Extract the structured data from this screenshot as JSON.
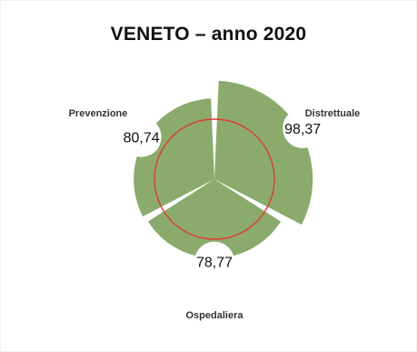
{
  "chart_data": {
    "type": "polar-bar",
    "title": "VENETO – anno 2020",
    "categories": [
      "Distrettuale",
      "Ospedaliera",
      "Prevenzione"
    ],
    "values": [
      98.37,
      78.77,
      80.74
    ],
    "value_labels": [
      "98,37",
      "78,77",
      "80,74"
    ],
    "reference_value": 60,
    "scale_max": 100,
    "colors": {
      "fill": "#8aab6b",
      "reference_line": "#e03a2f",
      "background": "#ffffff"
    }
  }
}
